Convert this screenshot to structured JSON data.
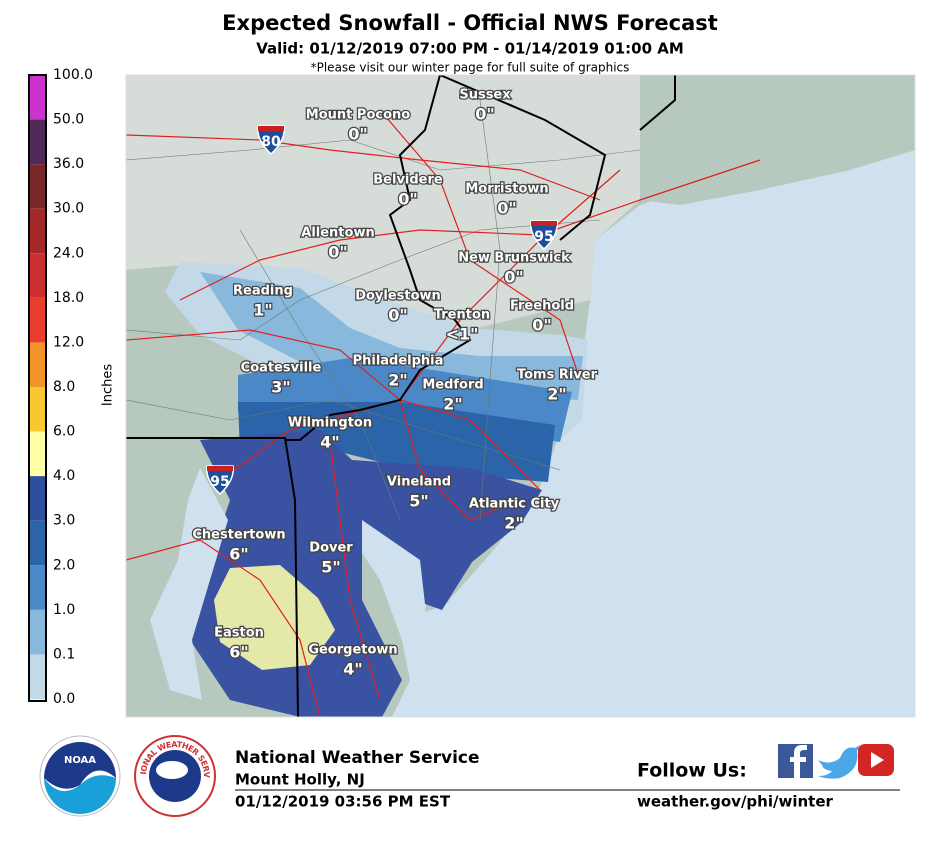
{
  "header": {
    "title": "Expected Snowfall - Official NWS Forecast",
    "valid": "Valid: 01/12/2019 07:00 PM - 01/14/2019 01:00 AM",
    "note": "*Please visit our winter page for full suite of graphics"
  },
  "legend": {
    "axis_label": "Inches",
    "levels": [
      {
        "label": "100.0",
        "color": "#cc33cc"
      },
      {
        "label": "50.0",
        "color": "#4f2a58"
      },
      {
        "label": "36.0",
        "color": "#782828"
      },
      {
        "label": "30.0",
        "color": "#a52828"
      },
      {
        "label": "24.0",
        "color": "#cc2f2f"
      },
      {
        "label": "18.0",
        "color": "#e83c2c"
      },
      {
        "label": "12.0",
        "color": "#f4952c"
      },
      {
        "label": "8.0",
        "color": "#f8c830"
      },
      {
        "label": "6.0",
        "color": "#ffffa6"
      },
      {
        "label": "4.0",
        "color": "#2e4e9e"
      },
      {
        "label": "3.0",
        "color": "#2c64aa"
      },
      {
        "label": "2.0",
        "color": "#4a88c8"
      },
      {
        "label": "1.0",
        "color": "#88b8dc"
      },
      {
        "label": "0.1",
        "color": "#c4d9e8"
      },
      {
        "label": "0.0",
        "color": "#f4f4f4"
      }
    ]
  },
  "map": {
    "cities": [
      {
        "name": "Mount Pocono",
        "amount": "0\""
      },
      {
        "name": "Sussex",
        "amount": "0\""
      },
      {
        "name": "Belvidere",
        "amount": "0\""
      },
      {
        "name": "Morristown",
        "amount": "0\""
      },
      {
        "name": "Allentown",
        "amount": "0\""
      },
      {
        "name": "New Brunswick",
        "amount": "0\""
      },
      {
        "name": "Reading",
        "amount": "1\""
      },
      {
        "name": "Doylestown",
        "amount": "0\""
      },
      {
        "name": "Trenton",
        "amount": "<1\""
      },
      {
        "name": "Freehold",
        "amount": "0\""
      },
      {
        "name": "Philadelphia",
        "amount": "2\""
      },
      {
        "name": "Coatesville",
        "amount": "3\""
      },
      {
        "name": "Toms River",
        "amount": "2\""
      },
      {
        "name": "Medford",
        "amount": "2\""
      },
      {
        "name": "Wilmington",
        "amount": "4\""
      },
      {
        "name": "Vineland",
        "amount": "5\""
      },
      {
        "name": "Atlantic City",
        "amount": "2\""
      },
      {
        "name": "Chestertown",
        "amount": "6\""
      },
      {
        "name": "Dover",
        "amount": "5\""
      },
      {
        "name": "Easton",
        "amount": "6\""
      },
      {
        "name": "Georgetown",
        "amount": "4\""
      }
    ],
    "shields": [
      "80",
      "95",
      "95"
    ]
  },
  "footer": {
    "noaa": "NOAA",
    "nws_ring": "NATIONAL WEATHER SERVICE",
    "office": "National Weather Service",
    "location": "Mount Holly, NJ",
    "issued": "01/12/2019 03:56 PM EST",
    "follow": "Follow Us:",
    "url": "weather.gov/phi/winter"
  }
}
